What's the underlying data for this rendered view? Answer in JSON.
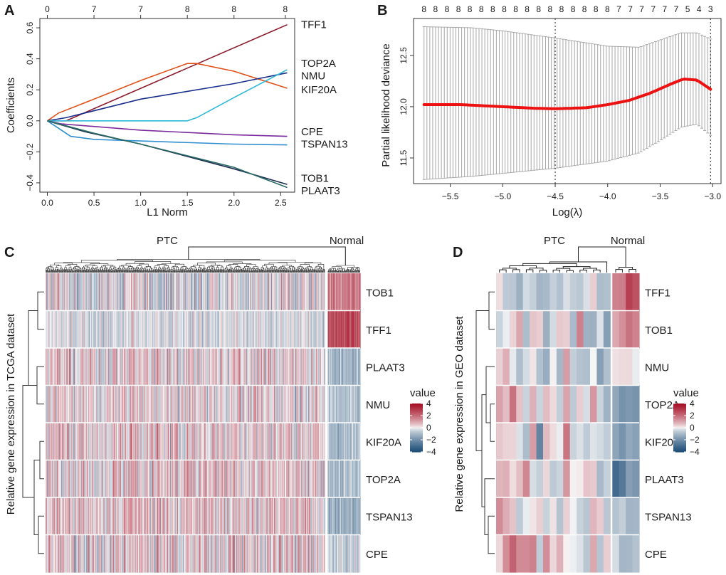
{
  "colors": {
    "heat_low": "#1f4e79",
    "heat_mid": "#f7f7f7",
    "heat_high": "#a50f26",
    "cv_mean": "#ee1111",
    "cv_bar": "#a6a6a6"
  },
  "chart_data": [
    {
      "panel": "A",
      "type": "line",
      "title": "",
      "xlabel": "L1 Norm",
      "ylabel": "Coefficients",
      "xlim": [
        -0.08,
        2.65
      ],
      "ylim": [
        -0.46,
        0.66
      ],
      "x_ticks": [
        0.0,
        0.5,
        1.0,
        1.5,
        2.0,
        2.5
      ],
      "y_ticks": [
        -0.4,
        -0.2,
        0.0,
        0.2,
        0.4,
        0.6
      ],
      "top_ticks": [
        {
          "x": 0.0,
          "label": "0"
        },
        {
          "x": 0.5,
          "label": "7"
        },
        {
          "x": 1.0,
          "label": "7"
        },
        {
          "x": 1.5,
          "label": "8"
        },
        {
          "x": 2.0,
          "label": "8"
        },
        {
          "x": 2.55,
          "label": "8"
        }
      ],
      "series": [
        {
          "name": "TFF1",
          "color": "#8b1a2b",
          "x": [
            0.0,
            0.2,
            2.57
          ],
          "y": [
            0.0,
            0.0,
            0.62
          ]
        },
        {
          "name": "TOP2A",
          "color": "#e0501a",
          "x": [
            0.0,
            0.12,
            0.5,
            1.0,
            1.5,
            1.6,
            2.0,
            2.57
          ],
          "y": [
            0.0,
            0.05,
            0.14,
            0.26,
            0.37,
            0.37,
            0.32,
            0.21
          ]
        },
        {
          "name": "NMU",
          "color": "#1a2f8a",
          "x": [
            0.0,
            0.2,
            1.0,
            2.0,
            2.57
          ],
          "y": [
            0.0,
            0.02,
            0.14,
            0.24,
            0.31
          ]
        },
        {
          "name": "KIF20A",
          "color": "#2fb8d6",
          "x": [
            0.0,
            0.3,
            1.5,
            1.6,
            2.0,
            2.57
          ],
          "y": [
            0.0,
            0.0,
            0.0,
            0.02,
            0.15,
            0.33
          ]
        },
        {
          "name": "CPE",
          "color": "#7b2a9e",
          "x": [
            0.0,
            0.15,
            1.0,
            2.0,
            2.57
          ],
          "y": [
            0.0,
            -0.02,
            -0.06,
            -0.09,
            -0.1
          ]
        },
        {
          "name": "TSPAN13",
          "color": "#2f8fcf",
          "x": [
            0.0,
            0.25,
            0.5,
            1.0,
            2.0,
            2.57
          ],
          "y": [
            0.0,
            -0.1,
            -0.12,
            -0.13,
            -0.15,
            -0.155
          ]
        },
        {
          "name": "TOB1",
          "color": "#1d2e52",
          "x": [
            0.0,
            0.4,
            1.0,
            2.0,
            2.57
          ],
          "y": [
            0.0,
            -0.07,
            -0.15,
            -0.31,
            -0.41
          ]
        },
        {
          "name": "PLAAT3",
          "color": "#2a6b63",
          "x": [
            0.0,
            0.5,
            1.0,
            2.0,
            2.57
          ],
          "y": [
            0.0,
            -0.08,
            -0.15,
            -0.3,
            -0.43
          ]
        }
      ],
      "end_labels": [
        {
          "name": "TFF1",
          "y": 0.62
        },
        {
          "name": "TOP2A",
          "y": 0.37
        },
        {
          "name": "NMU",
          "y": 0.29
        },
        {
          "name": "KIF20A",
          "y": 0.2
        },
        {
          "name": "CPE",
          "y": -0.07
        },
        {
          "name": "TSPAN13",
          "y": -0.15
        },
        {
          "name": "TOB1",
          "y": -0.37
        },
        {
          "name": "PLAAT3",
          "y": -0.45
        }
      ]
    },
    {
      "panel": "B",
      "type": "line",
      "title": "",
      "xlabel": "Log(λ)",
      "ylabel": "Partial likelihood deviance",
      "xlim": [
        -5.85,
        -2.92
      ],
      "ylim": [
        11.25,
        12.86
      ],
      "x_ticks": [
        -5.5,
        -5.0,
        -4.5,
        -4.0,
        -3.5,
        -3.0
      ],
      "y_ticks": [
        11.5,
        12.0,
        12.5
      ],
      "top_labels": [
        "8",
        "8",
        "8",
        "8",
        "8",
        "8",
        "8",
        "8",
        "8",
        "8",
        "8",
        "8",
        "8",
        "8",
        "8",
        "8",
        "8",
        "7",
        "7",
        "7",
        "7",
        "7",
        "7",
        "5",
        "4",
        "3"
      ],
      "vlines": [
        -4.5,
        -3.02
      ],
      "log_lambda_start": -5.75,
      "log_lambda_end": -3.02,
      "mean_points": [
        {
          "x": -5.75,
          "y": 12.02
        },
        {
          "x": -5.4,
          "y": 12.02
        },
        {
          "x": -5.0,
          "y": 12.0
        },
        {
          "x": -4.7,
          "y": 11.985
        },
        {
          "x": -4.5,
          "y": 11.98
        },
        {
          "x": -4.2,
          "y": 11.99
        },
        {
          "x": -4.0,
          "y": 12.02
        },
        {
          "x": -3.8,
          "y": 12.06
        },
        {
          "x": -3.6,
          "y": 12.13
        },
        {
          "x": -3.4,
          "y": 12.22
        },
        {
          "x": -3.28,
          "y": 12.27
        },
        {
          "x": -3.15,
          "y": 12.26
        },
        {
          "x": -3.02,
          "y": 12.17
        }
      ],
      "upper_points": [
        {
          "x": -5.75,
          "y": 12.78
        },
        {
          "x": -5.3,
          "y": 12.77
        },
        {
          "x": -5.0,
          "y": 12.74
        },
        {
          "x": -4.5,
          "y": 12.67
        },
        {
          "x": -4.0,
          "y": 12.59
        },
        {
          "x": -3.7,
          "y": 12.58
        },
        {
          "x": -3.5,
          "y": 12.65
        },
        {
          "x": -3.3,
          "y": 12.72
        },
        {
          "x": -3.15,
          "y": 12.72
        },
        {
          "x": -3.02,
          "y": 12.66
        }
      ],
      "lower_points": [
        {
          "x": -5.75,
          "y": 11.29
        },
        {
          "x": -5.3,
          "y": 11.32
        },
        {
          "x": -5.0,
          "y": 11.35
        },
        {
          "x": -4.5,
          "y": 11.4
        },
        {
          "x": -4.0,
          "y": 11.47
        },
        {
          "x": -3.7,
          "y": 11.55
        },
        {
          "x": -3.5,
          "y": 11.67
        },
        {
          "x": -3.3,
          "y": 11.8
        },
        {
          "x": -3.15,
          "y": 11.83
        },
        {
          "x": -3.02,
          "y": 11.72
        }
      ]
    },
    {
      "panel": "C",
      "type": "heatmap",
      "title": "",
      "ylabel": "Relative gene expression in TCGA dataset",
      "groups": [
        {
          "name": "PTC",
          "columns": 500
        },
        {
          "name": "Normal",
          "columns": 58
        }
      ],
      "genes": [
        "TOB1",
        "TFF1",
        "PLAAT3",
        "NMU",
        "KIF20A",
        "TOP2A",
        "TSPAN13",
        "CPE"
      ],
      "legend": {
        "title": "value",
        "ticks": [
          4,
          2,
          0,
          -2,
          -4
        ]
      },
      "gene_profiles": [
        {
          "gene": "TOB1",
          "PTC_mean": -0.2,
          "PTC_spread": 1.8,
          "Normal_mean": 1.8
        },
        {
          "gene": "TFF1",
          "PTC_mean": -0.3,
          "PTC_spread": 1.0,
          "Normal_mean": 2.8
        },
        {
          "gene": "PLAAT3",
          "PTC_mean": 0.3,
          "PTC_spread": 1.6,
          "Normal_mean": -1.2
        },
        {
          "gene": "NMU",
          "PTC_mean": 0.2,
          "PTC_spread": 1.5,
          "Normal_mean": -0.8
        },
        {
          "gene": "KIF20A",
          "PTC_mean": 0.4,
          "PTC_spread": 1.6,
          "Normal_mean": -1.0
        },
        {
          "gene": "TOP2A",
          "PTC_mean": 0.4,
          "PTC_spread": 1.6,
          "Normal_mean": -0.9
        },
        {
          "gene": "TSPAN13",
          "PTC_mean": 0.5,
          "PTC_spread": 1.6,
          "Normal_mean": -1.3
        },
        {
          "gene": "CPE",
          "PTC_mean": 0.3,
          "PTC_spread": 1.8,
          "Normal_mean": -0.6
        }
      ]
    },
    {
      "panel": "D",
      "type": "heatmap",
      "title": "",
      "ylabel": "Relative gene expression in GEO dataset",
      "groups": [
        {
          "name": "PTC",
          "columns": 17
        },
        {
          "name": "Normal",
          "columns": 4
        }
      ],
      "genes": [
        "TFF1",
        "TOB1",
        "NMU",
        "TOP2A",
        "KIF20A",
        "PLAAT3",
        "TSPAN13",
        "CPE"
      ],
      "legend": {
        "title": "value",
        "ticks": [
          4,
          2,
          0,
          -2,
          -4
        ]
      },
      "gene_profiles": [
        {
          "gene": "TFF1",
          "PTC_mean": -0.5,
          "PTC_spread": 0.8,
          "Normal_mean": 2.2
        },
        {
          "gene": "TOB1",
          "PTC_mean": 0.0,
          "PTC_spread": 1.5,
          "Normal_mean": 1.0
        },
        {
          "gene": "NMU",
          "PTC_mean": -0.5,
          "PTC_spread": 1.0,
          "Normal_mean": 0.0
        },
        {
          "gene": "TOP2A",
          "PTC_mean": 0.3,
          "PTC_spread": 1.5,
          "Normal_mean": -1.6
        },
        {
          "gene": "KIF20A",
          "PTC_mean": 0.2,
          "PTC_spread": 1.5,
          "Normal_mean": -1.6
        },
        {
          "gene": "PLAAT3",
          "PTC_mean": 0.4,
          "PTC_spread": 1.2,
          "Normal_mean": -2.4
        },
        {
          "gene": "TSPAN13",
          "PTC_mean": 0.6,
          "PTC_spread": 1.4,
          "Normal_mean": -1.0
        },
        {
          "gene": "CPE",
          "PTC_mean": 0.5,
          "PTC_spread": 1.4,
          "Normal_mean": -1.0
        }
      ]
    }
  ]
}
